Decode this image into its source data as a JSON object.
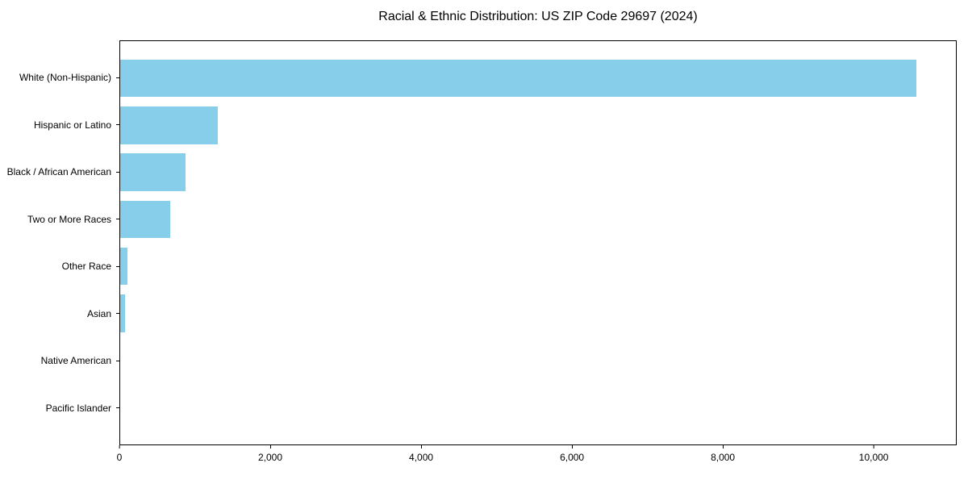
{
  "chart_data": {
    "type": "bar",
    "orientation": "horizontal",
    "title": "Racial & Ethnic Distribution: US ZIP Code 29697 (2024)",
    "categories": [
      "White (Non-Hispanic)",
      "Hispanic or Latino",
      "Black / African American",
      "Two or More Races",
      "Other Race",
      "Asian",
      "Native American",
      "Pacific Islander"
    ],
    "values": [
      10570,
      1300,
      870,
      660,
      95,
      60,
      0,
      0
    ],
    "xlabel": "",
    "ylabel": "",
    "xlim": [
      0,
      11100
    ],
    "xticks": [
      0,
      2000,
      4000,
      6000,
      8000,
      10000
    ],
    "xtick_labels": [
      "0",
      "2,000",
      "4,000",
      "6,000",
      "8,000",
      "10,000"
    ],
    "bar_color": "#87CEEB",
    "text_color": "#000000",
    "axis_color": "#000000",
    "grid": false,
    "legend": null
  }
}
